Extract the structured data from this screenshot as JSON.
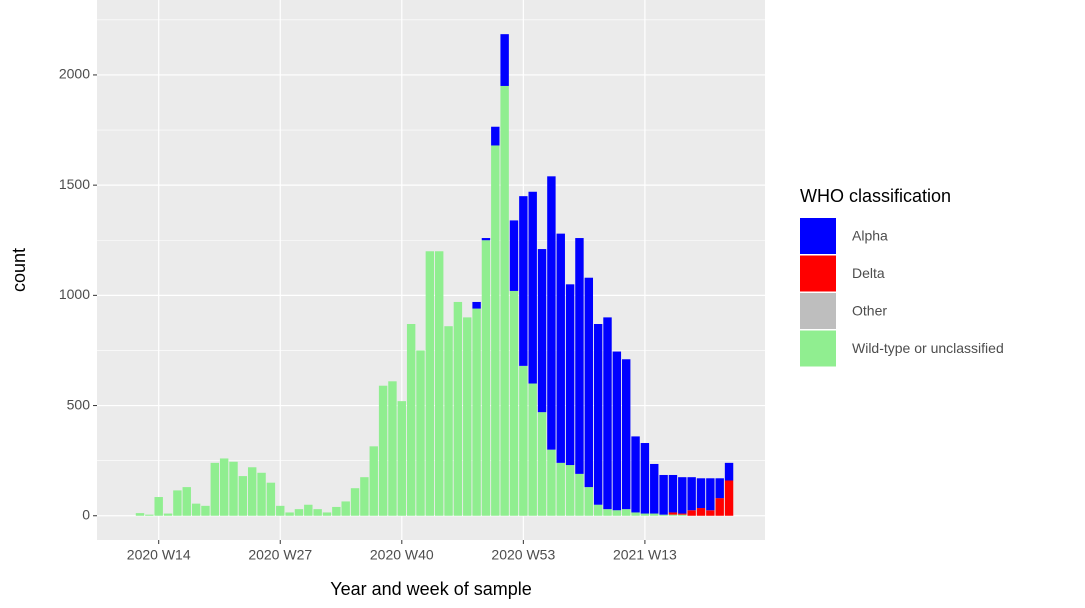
{
  "chart_data": {
    "type": "bar",
    "stacked": true,
    "x_label": "Year and week of sample",
    "y_label": "count",
    "legend_title": "WHO classification",
    "categories": [
      null,
      null,
      "2020 W14",
      null,
      null,
      null,
      null,
      null,
      null,
      null,
      null,
      null,
      null,
      null,
      null,
      "2020 W27",
      null,
      null,
      null,
      null,
      null,
      null,
      null,
      null,
      null,
      null,
      null,
      null,
      "2020 W40",
      null,
      null,
      null,
      null,
      null,
      null,
      null,
      null,
      null,
      null,
      null,
      null,
      "2020 W53",
      null,
      null,
      null,
      null,
      null,
      null,
      null,
      null,
      null,
      null,
      null,
      null,
      "2021 W13",
      null,
      null,
      null,
      null,
      null,
      null,
      null,
      null,
      null
    ],
    "series": [
      {
        "name": "Alpha",
        "color": "#0000ff",
        "values": [
          0,
          0,
          0,
          0,
          0,
          0,
          0,
          0,
          0,
          0,
          0,
          0,
          0,
          0,
          0,
          0,
          0,
          0,
          0,
          0,
          0,
          0,
          0,
          0,
          0,
          0,
          0,
          0,
          0,
          0,
          0,
          0,
          0,
          0,
          0,
          0,
          30,
          10,
          85,
          235,
          320,
          770,
          870,
          740,
          1240,
          1040,
          820,
          1070,
          950,
          820,
          870,
          720,
          680,
          345,
          320,
          225,
          180,
          170,
          165,
          150,
          135,
          145,
          90,
          80
        ]
      },
      {
        "name": "Delta",
        "color": "#ff0000",
        "values": [
          0,
          0,
          0,
          0,
          0,
          0,
          0,
          0,
          0,
          0,
          0,
          0,
          0,
          0,
          0,
          0,
          0,
          0,
          0,
          0,
          0,
          0,
          0,
          0,
          0,
          0,
          0,
          0,
          0,
          0,
          0,
          0,
          0,
          0,
          0,
          0,
          0,
          0,
          0,
          0,
          0,
          0,
          0,
          0,
          0,
          0,
          0,
          0,
          0,
          0,
          0,
          0,
          0,
          0,
          0,
          0,
          0,
          10,
          5,
          25,
          35,
          25,
          80,
          160
        ]
      },
      {
        "name": "Other",
        "color": "#bebebe",
        "values": [
          0,
          0,
          0,
          0,
          0,
          0,
          0,
          0,
          0,
          0,
          0,
          0,
          0,
          0,
          0,
          0,
          0,
          0,
          0,
          0,
          0,
          0,
          0,
          0,
          0,
          0,
          0,
          0,
          0,
          0,
          0,
          0,
          0,
          0,
          0,
          0,
          0,
          0,
          0,
          0,
          0,
          0,
          0,
          0,
          0,
          0,
          0,
          0,
          0,
          0,
          0,
          0,
          0,
          0,
          0,
          0,
          0,
          0,
          0,
          0,
          0,
          0,
          0,
          0
        ]
      },
      {
        "name": "Wild-type or unclassified",
        "color": "#90ee90",
        "values": [
          12,
          5,
          85,
          10,
          115,
          130,
          55,
          45,
          240,
          260,
          245,
          180,
          220,
          195,
          150,
          45,
          15,
          30,
          50,
          30,
          15,
          40,
          65,
          125,
          175,
          315,
          590,
          610,
          520,
          870,
          750,
          1200,
          1200,
          860,
          970,
          900,
          940,
          1250,
          1680,
          1950,
          1020,
          680,
          600,
          470,
          300,
          240,
          230,
          190,
          130,
          50,
          30,
          25,
          30,
          15,
          10,
          10,
          5,
          5,
          5,
          0,
          0,
          0,
          0,
          0
        ]
      }
    ],
    "ylim": [
      -110,
      2340
    ],
    "yticks": [
      0,
      500,
      1000,
      1500,
      2000
    ],
    "minor_yticks": [
      250,
      750,
      1250,
      1750,
      2250
    ],
    "grid": true
  }
}
